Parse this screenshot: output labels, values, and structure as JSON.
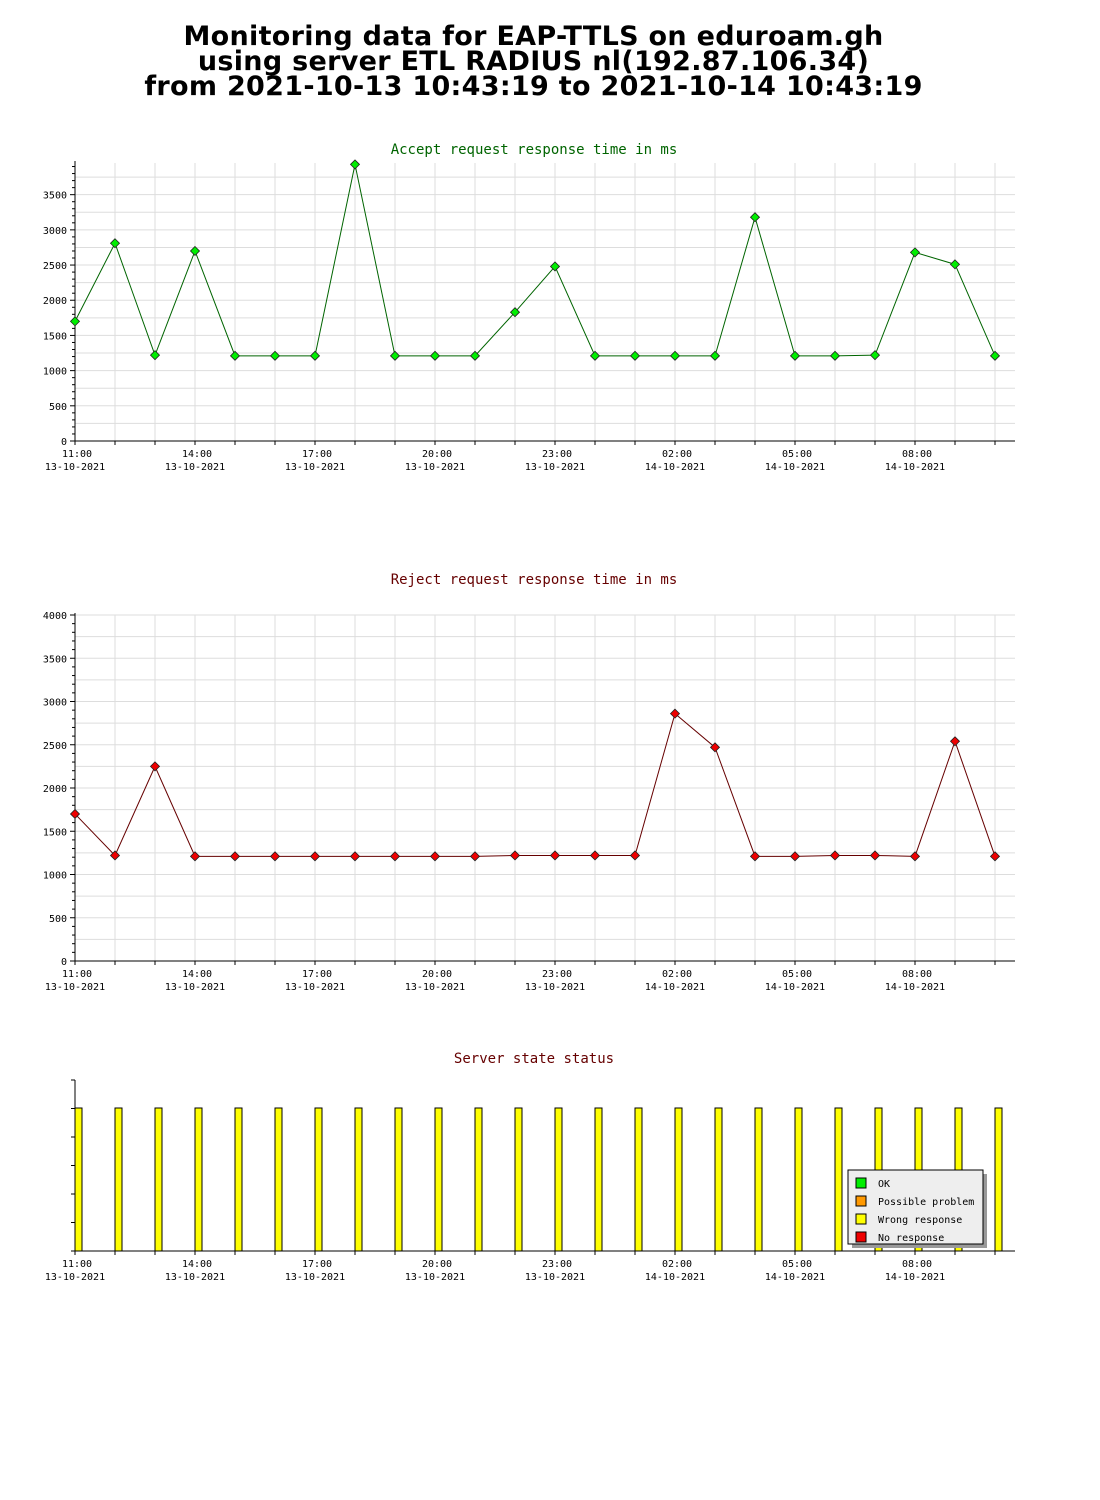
{
  "header": {
    "title_lines": [
      "Monitoring data for EAP-TTLS on eduroam.gh",
      "using server ETL RADIUS nl(192.87.106.34)",
      "from 2021-10-13 10:43:19 to 2021-10-14 10:43:19"
    ]
  },
  "colors": {
    "accept_line": "#006400",
    "accept_point": "#00ee00",
    "reject_line": "#660000",
    "reject_point": "#ee0000",
    "status_bar": "#ffff00",
    "ok": "#00ee00",
    "possible_problem": "#ff9900",
    "wrong_response": "#ffff00",
    "no_response": "#ee0000"
  },
  "chart_data": [
    {
      "type": "line",
      "title": "Accept request response time in ms",
      "xlabel": "",
      "ylabel": "",
      "ylim": [
        0,
        3950
      ],
      "yticks": [
        0,
        500,
        1000,
        1500,
        2000,
        2500,
        3000,
        3500
      ],
      "grid": true,
      "xrange_hours": [
        0,
        23.5
      ],
      "xticks": [
        {
          "hour": 0,
          "time": "11:00",
          "date": "13-10-2021"
        },
        {
          "hour": 3,
          "time": "14:00",
          "date": "13-10-2021"
        },
        {
          "hour": 6,
          "time": "17:00",
          "date": "13-10-2021"
        },
        {
          "hour": 9,
          "time": "20:00",
          "date": "13-10-2021"
        },
        {
          "hour": 12,
          "time": "23:00",
          "date": "13-10-2021"
        },
        {
          "hour": 15,
          "time": "02:00",
          "date": "14-10-2021"
        },
        {
          "hour": 18,
          "time": "05:00",
          "date": "14-10-2021"
        },
        {
          "hour": 21,
          "time": "08:00",
          "date": "14-10-2021"
        }
      ],
      "series": [
        {
          "x": [
            0,
            1,
            2,
            3,
            4,
            5,
            6,
            7,
            8,
            9,
            10,
            11,
            12,
            13,
            14,
            15,
            16,
            17,
            18,
            19,
            20,
            21,
            22,
            23
          ],
          "values": [
            1700,
            2810,
            1220,
            2700,
            1210,
            1210,
            1210,
            3930,
            1210,
            1210,
            1210,
            1830,
            2480,
            1210,
            1210,
            1210,
            1210,
            3180,
            1210,
            1210,
            1220,
            2680,
            2510,
            1210
          ]
        }
      ]
    },
    {
      "type": "line",
      "title": "Reject request response time in ms",
      "xlabel": "",
      "ylabel": "",
      "ylim": [
        0,
        4000
      ],
      "yticks": [
        0,
        500,
        1000,
        1500,
        2000,
        2500,
        3000,
        3500,
        4000
      ],
      "grid": true,
      "xrange_hours": [
        0,
        23.5
      ],
      "xticks": [
        {
          "hour": 0,
          "time": "11:00",
          "date": "13-10-2021"
        },
        {
          "hour": 3,
          "time": "14:00",
          "date": "13-10-2021"
        },
        {
          "hour": 6,
          "time": "17:00",
          "date": "13-10-2021"
        },
        {
          "hour": 9,
          "time": "20:00",
          "date": "13-10-2021"
        },
        {
          "hour": 12,
          "time": "23:00",
          "date": "13-10-2021"
        },
        {
          "hour": 15,
          "time": "02:00",
          "date": "14-10-2021"
        },
        {
          "hour": 18,
          "time": "05:00",
          "date": "14-10-2021"
        },
        {
          "hour": 21,
          "time": "08:00",
          "date": "14-10-2021"
        }
      ],
      "series": [
        {
          "x": [
            0,
            1,
            2,
            3,
            4,
            5,
            6,
            7,
            8,
            9,
            10,
            11,
            12,
            13,
            14,
            15,
            16,
            17,
            18,
            19,
            20,
            21,
            22,
            23
          ],
          "values": [
            1700,
            1220,
            2250,
            1210,
            1210,
            1210,
            1210,
            1210,
            1210,
            1210,
            1210,
            1220,
            1220,
            1220,
            1220,
            2860,
            2470,
            1210,
            1210,
            1220,
            1220,
            1210,
            2540,
            1210
          ]
        }
      ]
    },
    {
      "type": "bar",
      "title": "Server state status",
      "xlabel": "",
      "ylabel": "",
      "grid": false,
      "legend_position": "bottom-right",
      "xrange_hours": [
        0,
        23.5
      ],
      "xticks": [
        {
          "hour": 0,
          "time": "11:00",
          "date": "13-10-2021"
        },
        {
          "hour": 3,
          "time": "14:00",
          "date": "13-10-2021"
        },
        {
          "hour": 6,
          "time": "17:00",
          "date": "13-10-2021"
        },
        {
          "hour": 9,
          "time": "20:00",
          "date": "13-10-2021"
        },
        {
          "hour": 12,
          "time": "23:00",
          "date": "13-10-2021"
        },
        {
          "hour": 15,
          "time": "02:00",
          "date": "14-10-2021"
        },
        {
          "hour": 18,
          "time": "05:00",
          "date": "14-10-2021"
        },
        {
          "hour": 21,
          "time": "08:00",
          "date": "14-10-2021"
        }
      ],
      "x": [
        0,
        1,
        2,
        3,
        4,
        5,
        6,
        7,
        8,
        9,
        10,
        11,
        12,
        13,
        14,
        15,
        16,
        17,
        18,
        19,
        20,
        21,
        22,
        23
      ],
      "states": [
        "Wrong response",
        "Wrong response",
        "Wrong response",
        "Wrong response",
        "Wrong response",
        "Wrong response",
        "Wrong response",
        "Wrong response",
        "Wrong response",
        "Wrong response",
        "Wrong response",
        "Wrong response",
        "Wrong response",
        "Wrong response",
        "Wrong response",
        "Wrong response",
        "Wrong response",
        "Wrong response",
        "Wrong response",
        "Wrong response",
        "Wrong response",
        "Wrong response",
        "Wrong response",
        "Wrong response"
      ],
      "legend": [
        {
          "label": "OK",
          "color": "#00ee00"
        },
        {
          "label": "Possible problem",
          "color": "#ff9900"
        },
        {
          "label": "Wrong response",
          "color": "#ffff00"
        },
        {
          "label": "No response",
          "color": "#ee0000"
        }
      ]
    }
  ]
}
